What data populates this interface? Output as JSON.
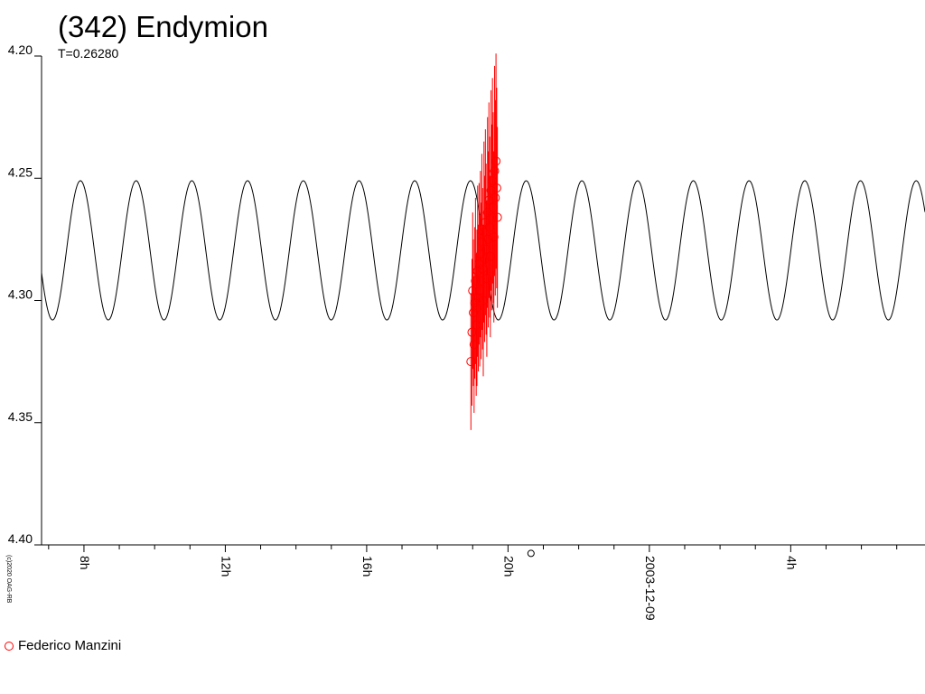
{
  "chart_data": {
    "type": "scatter",
    "title": "(342) Endymion",
    "subtitle": "T=0.26280",
    "xlabel": "",
    "ylabel": "",
    "x_unit": "hours",
    "xlim": [
      6.8,
      31.8
    ],
    "ylim": [
      4.4,
      4.2
    ],
    "y_reversed": true,
    "grid": false,
    "legend_position": "bottom-left",
    "y_ticks": [
      "4.20",
      "4.25",
      "4.30",
      "4.35",
      "4.40"
    ],
    "x_ticks": [
      {
        "x": 8,
        "label": "8h"
      },
      {
        "x": 12,
        "label": "12h"
      },
      {
        "x": 16,
        "label": "16h"
      },
      {
        "x": 20,
        "label": "20h"
      },
      {
        "x": 24,
        "label": "2003-12-09"
      },
      {
        "x": 28,
        "label": "4h"
      }
    ],
    "model_curve": {
      "period_days": 0.1314,
      "mean_mag": 4.2795,
      "amplitude": 0.0285,
      "reference_min_hour": 7.9,
      "color": "#000000"
    },
    "series": [
      {
        "name": "Federico Manzini",
        "color": "#ff0000",
        "x": [
          18.95,
          18.98,
          19.0,
          19.02,
          19.04,
          19.06,
          19.08,
          19.1,
          19.12,
          19.14,
          19.16,
          19.18,
          19.2,
          19.22,
          19.24,
          19.26,
          19.28,
          19.3,
          19.32,
          19.34,
          19.36,
          19.38,
          19.4,
          19.42,
          19.44,
          19.46,
          19.48,
          19.5,
          19.52,
          19.54,
          19.56,
          19.58,
          19.6,
          19.62,
          19.64,
          19.66,
          19.68,
          19.7
        ],
        "y": [
          4.325,
          4.313,
          4.296,
          4.305,
          4.318,
          4.301,
          4.292,
          4.31,
          4.303,
          4.288,
          4.299,
          4.285,
          4.296,
          4.281,
          4.292,
          4.276,
          4.287,
          4.3,
          4.272,
          4.283,
          4.268,
          4.279,
          4.291,
          4.264,
          4.275,
          4.259,
          4.27,
          4.282,
          4.255,
          4.266,
          4.251,
          4.262,
          4.274,
          4.247,
          4.258,
          4.243,
          4.254,
          4.266
        ],
        "err": [
          0.028,
          0.03,
          0.032,
          0.03,
          0.028,
          0.031,
          0.034,
          0.029,
          0.032,
          0.035,
          0.03,
          0.033,
          0.031,
          0.034,
          0.032,
          0.036,
          0.033,
          0.031,
          0.037,
          0.034,
          0.038,
          0.035,
          0.032,
          0.039,
          0.036,
          0.04,
          0.037,
          0.033,
          0.041,
          0.038,
          0.042,
          0.039,
          0.035,
          0.043,
          0.04,
          0.044,
          0.041,
          0.037
        ]
      }
    ],
    "stray_point": {
      "x": 20.65,
      "y": 4.402
    }
  },
  "copyright": "(c)2020 OAG-RB"
}
